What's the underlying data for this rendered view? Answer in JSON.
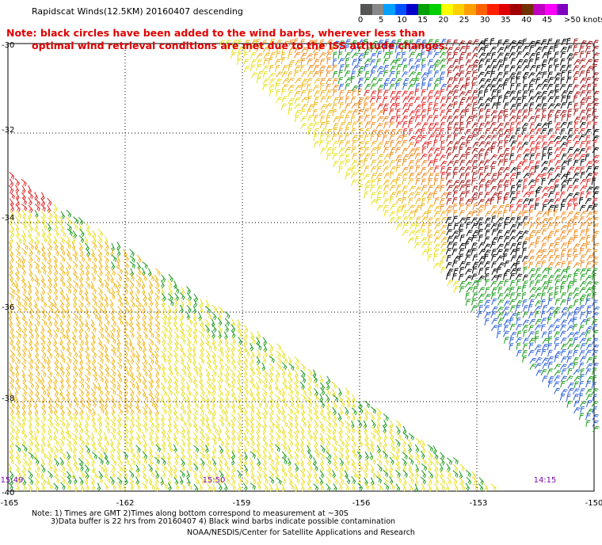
{
  "header": {
    "title": "Rapidscat Winds(12.5KM) 20160407 descending",
    "note_line1": "Note: black circles have been added to the wind barbs, wherever less than",
    "note_line2": "optimal wind retrieval conditions are met due to the ISS attitude changes."
  },
  "legend": {
    "labels": [
      "0",
      "5",
      "10",
      "15",
      "20",
      "25",
      "30",
      "35",
      "40",
      "45",
      ">50 knots"
    ],
    "colors": [
      "#555555",
      "#888888",
      "#00a0ff",
      "#0050ff",
      "#0000c8",
      "#00a000",
      "#00d000",
      "#ffff00",
      "#ffd000",
      "#ffa000",
      "#ff6000",
      "#ff2000",
      "#e00000",
      "#a00000",
      "#703000",
      "#c000c0",
      "#ff00ff",
      "#8000c0"
    ],
    "knots_range": [
      0,
      50
    ]
  },
  "map": {
    "latitudes": [
      "-30",
      "-32",
      "-34",
      "-36",
      "-38",
      "-40"
    ],
    "longitudes": [
      "-165",
      "-162",
      "-159",
      "-156",
      "-153",
      "-150"
    ],
    "lat_range": [
      -40,
      -30
    ],
    "lon_range": [
      -165,
      -150
    ],
    "grid": true,
    "pass_times": [
      "15:49",
      "15:50",
      "14:15"
    ],
    "swath_colors": {
      "calm": "#2a5ed8",
      "green": "#1a9a1a",
      "yellow": "#e8e020",
      "gold": "#f0b81a",
      "orange": "#f08a1a",
      "red": "#e02020",
      "darkred": "#a01010",
      "black": "#000000"
    }
  },
  "footer": {
    "line1": "Note: 1) Times are GMT 2)Times along bottom correspond to measurement at ~30S",
    "line2": "3)Data buffer is 22 hrs from 20160407 4) Black wind barbs indicate possible contamination",
    "line3": "NOAA/NESDIS/Center for Satellite Applications and Research"
  }
}
